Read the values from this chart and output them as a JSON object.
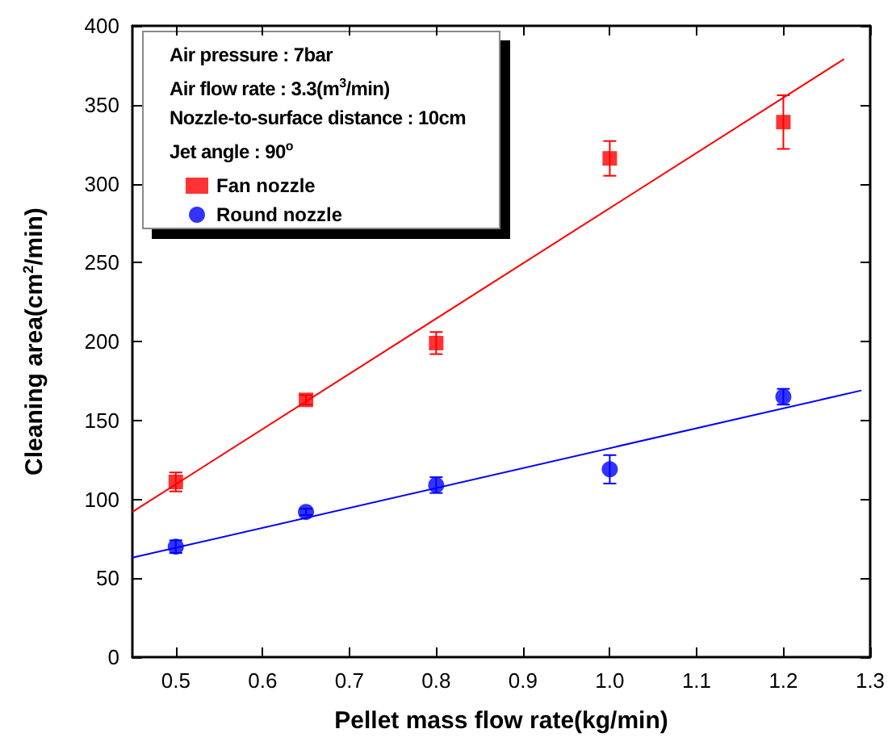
{
  "chart_data": {
    "type": "scatter",
    "xlabel": "Pellet mass flow rate(kg/min)",
    "ylabel": "Cleaning area(cm$^{2}$/min)",
    "xlim": [
      0.45,
      1.3
    ],
    "xticks": [
      0.5,
      0.6,
      0.7,
      0.8,
      0.9,
      {
        "value": 1,
        "label": "1.0"
      },
      1.1,
      1.2,
      1.3
    ],
    "ylim": [
      0,
      400
    ],
    "yticks": [
      0,
      50,
      100,
      150,
      200,
      250,
      300,
      350,
      400
    ],
    "grid": false,
    "legend": "top left",
    "annotations": [
      "Air pressure : 7bar",
      "Air flow rate : 3.3(m$^{3}$/min)",
      "Nozzle-to-surface distance : 10cm",
      "Jet angle : 90$^{o}$"
    ],
    "series": [
      {
        "name": "Fan nozzle",
        "color": "#ff0000",
        "marker": "square",
        "x": [
          0.5,
          0.65,
          0.8,
          1.0,
          1.2
        ],
        "values": [
          111,
          163,
          199,
          316,
          339
        ],
        "errors": [
          6,
          3,
          7,
          11,
          17
        ]
      },
      {
        "name": "Round nozzle",
        "color": "#0000ff",
        "marker": "circle",
        "x": [
          0.5,
          0.65,
          0.8,
          1.0,
          1.2
        ],
        "values": [
          70,
          92,
          109,
          119,
          165
        ],
        "errors": [
          4,
          2,
          5,
          9,
          5
        ]
      },
      {
        "type": "line",
        "color": "#ff0000",
        "marker": "none",
        "x": [
          0.45,
          1.27
        ],
        "values": [
          92,
          379
        ]
      },
      {
        "type": "line",
        "color": "#0000ff",
        "marker": "none",
        "x": [
          0.45,
          1.29
        ],
        "values": [
          63,
          169
        ]
      }
    ]
  }
}
